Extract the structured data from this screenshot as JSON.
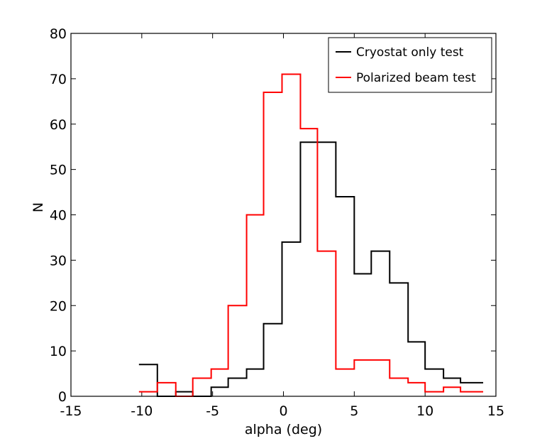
{
  "chart_data": {
    "type": "step-histogram",
    "title": "",
    "xlabel": "alpha (deg)",
    "ylabel": "N",
    "xlim": [
      -15,
      15
    ],
    "ylim": [
      0,
      80
    ],
    "xticks": [
      -15,
      -10,
      -5,
      0,
      5,
      10,
      15
    ],
    "yticks": [
      0,
      10,
      20,
      30,
      40,
      50,
      60,
      70,
      80
    ],
    "grid": false,
    "legend_position": "top-right",
    "bin_edges": [
      -10.2,
      -8.9,
      -7.6,
      -6.4,
      -5.1,
      -3.9,
      -2.6,
      -1.4,
      -0.1,
      1.2,
      2.4,
      3.7,
      5.0,
      6.2,
      7.5,
      8.8,
      10.0,
      11.3,
      12.5,
      13.8,
      14.1
    ],
    "series": [
      {
        "name": "Cryostat only test",
        "color": "#000000",
        "edges": [
          -10.2,
          -8.9,
          -7.6,
          -6.4,
          -5.1,
          -3.9,
          -2.6,
          -1.4,
          -0.1,
          1.2,
          2.4,
          3.7,
          5.0,
          6.2,
          7.5,
          8.8,
          10.0,
          11.3,
          12.5,
          13.8,
          14.1
        ],
        "values": [
          7,
          0,
          1,
          0,
          2,
          4,
          6,
          16,
          34,
          56,
          56,
          44,
          27,
          32,
          25,
          12,
          6,
          4,
          3,
          3
        ]
      },
      {
        "name": "Polarized beam test",
        "color": "#ff0000",
        "edges": [
          -10.2,
          -8.9,
          -7.6,
          -6.4,
          -5.1,
          -3.9,
          -2.6,
          -1.4,
          -0.1,
          1.2,
          2.4,
          3.7,
          5.0,
          6.2,
          7.5,
          8.8,
          10.0,
          11.3,
          12.5,
          13.8,
          14.1
        ],
        "values": [
          1,
          3,
          0,
          4,
          6,
          20,
          40,
          67,
          71,
          59,
          32,
          6,
          8,
          8,
          4,
          3,
          1,
          2,
          1,
          1
        ]
      }
    ]
  }
}
